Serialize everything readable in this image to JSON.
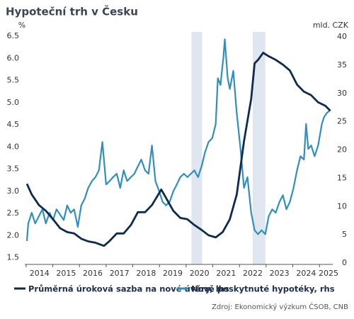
{
  "chart_data": {
    "type": "line",
    "title": "Hypoteční trh v Česku",
    "y_label": "%",
    "y2_label": "mld. CZK",
    "source": "Zdroj: Ekonomický výzkum ČSOB, CNB",
    "xlim": [
      2013.95,
      2025.5
    ],
    "xticks": [
      2014,
      2015,
      2016,
      2017,
      2018,
      2019,
      2020,
      2021,
      2022,
      2023,
      2024,
      2025
    ],
    "ylim": [
      1.35,
      6.6
    ],
    "yticks": [
      1.5,
      {
        "value": 2,
        "label": "2.0"
      },
      2.5,
      {
        "value": 3,
        "label": "3.0"
      },
      3.5,
      {
        "value": 4,
        "label": "4.0"
      },
      4.5,
      {
        "value": 5,
        "label": "5.0"
      },
      5.5,
      {
        "value": 6,
        "label": "6.0"
      },
      6.5
    ],
    "y2lim": [
      -0.25,
      40.9
    ],
    "y2ticks": [
      0,
      5,
      10,
      15,
      20,
      25,
      30,
      35,
      40
    ],
    "shaded": [
      [
        2020.2,
        2020.6
      ],
      [
        2022.5,
        2022.97
      ]
    ],
    "shade_color": "#dfe6ef",
    "grid": false,
    "legend": "bottom",
    "series": [
      {
        "name": "Průměrná úroková sazba na nové úvěry, lhs",
        "color": "#0e2a4f",
        "axis": "y",
        "x": [
          2014.03,
          2014.21,
          2014.48,
          2014.74,
          2015.01,
          2015.27,
          2015.54,
          2015.8,
          2016.07,
          2016.33,
          2016.6,
          2016.92,
          2017.13,
          2017.4,
          2017.66,
          2017.93,
          2018.19,
          2018.46,
          2018.72,
          2019.07,
          2019.25,
          2019.52,
          2019.78,
          2020.05,
          2020.31,
          2020.58,
          2020.84,
          2021.11,
          2021.37,
          2021.64,
          2021.9,
          2022.17,
          2022.44,
          2022.57,
          2022.7,
          2022.89,
          2023.1,
          2023.36,
          2023.63,
          2023.89,
          2024.16,
          2024.42,
          2024.69,
          2024.95,
          2025.22,
          2025.41
        ],
        "values": [
          3.17,
          2.93,
          2.69,
          2.56,
          2.37,
          2.17,
          2.08,
          2.05,
          1.93,
          1.87,
          1.84,
          1.77,
          1.88,
          2.05,
          2.05,
          2.24,
          2.53,
          2.53,
          2.69,
          3.04,
          2.85,
          2.56,
          2.4,
          2.37,
          2.24,
          2.13,
          2.01,
          1.96,
          2.08,
          2.37,
          2.93,
          4.13,
          5.09,
          5.89,
          5.97,
          6.13,
          6.05,
          5.97,
          5.86,
          5.73,
          5.41,
          5.25,
          5.17,
          5.01,
          4.93,
          4.82
        ]
      },
      {
        "name": "Nově poskytnuté hypotéky, rhs",
        "color": "#2e8fc0",
        "axis": "y2",
        "x": [
          2014.03,
          2014.08,
          2014.21,
          2014.34,
          2014.48,
          2014.61,
          2014.74,
          2014.88,
          2015.01,
          2015.14,
          2015.41,
          2015.54,
          2015.67,
          2015.8,
          2015.94,
          2016.07,
          2016.2,
          2016.33,
          2016.47,
          2016.6,
          2016.73,
          2016.86,
          2017.0,
          2017.13,
          2017.26,
          2017.4,
          2017.53,
          2017.66,
          2017.79,
          2017.93,
          2018.06,
          2018.19,
          2018.32,
          2018.46,
          2018.59,
          2018.72,
          2018.85,
          2018.99,
          2019.12,
          2019.25,
          2019.38,
          2019.52,
          2019.65,
          2019.78,
          2019.92,
          2020.05,
          2020.18,
          2020.31,
          2020.45,
          2020.58,
          2020.71,
          2020.84,
          2020.98,
          2021.11,
          2021.19,
          2021.29,
          2021.4,
          2021.45,
          2021.56,
          2021.64,
          2021.77,
          2021.9,
          2022.04,
          2022.17,
          2022.3,
          2022.44,
          2022.57,
          2022.7,
          2022.83,
          2022.97,
          2023.1,
          2023.23,
          2023.36,
          2023.5,
          2023.63,
          2023.76,
          2023.89,
          2024.03,
          2024.16,
          2024.29,
          2024.42,
          2024.5,
          2024.58,
          2024.69,
          2024.82,
          2024.95,
          2025.09,
          2025.17,
          2025.27,
          2025.41
        ],
        "values": [
          3.9,
          7.0,
          8.9,
          7.0,
          8.3,
          9.5,
          7.0,
          8.9,
          7.6,
          9.5,
          7.6,
          10.2,
          8.9,
          9.5,
          6.4,
          10.2,
          11.4,
          13.3,
          14.5,
          15.2,
          16.4,
          21.4,
          13.9,
          14.5,
          15.2,
          15.8,
          13.3,
          16.4,
          14.5,
          15.2,
          15.8,
          17.1,
          18.3,
          16.4,
          15.8,
          20.8,
          14.5,
          12.7,
          10.8,
          10.2,
          10.8,
          12.7,
          13.9,
          15.2,
          15.8,
          15.2,
          15.8,
          16.4,
          15.2,
          17.1,
          19.6,
          21.4,
          22.1,
          24.6,
          32.7,
          31.5,
          36.5,
          39.6,
          32.7,
          30.8,
          34.0,
          26.5,
          20.2,
          13.3,
          15.2,
          8.9,
          5.8,
          5.1,
          5.8,
          5.1,
          8.3,
          9.5,
          8.9,
          10.8,
          12.0,
          9.5,
          10.8,
          13.3,
          16.4,
          18.9,
          18.3,
          24.6,
          20.2,
          20.8,
          18.9,
          20.8,
          24.6,
          25.8,
          26.5,
          27.1
        ]
      }
    ]
  }
}
